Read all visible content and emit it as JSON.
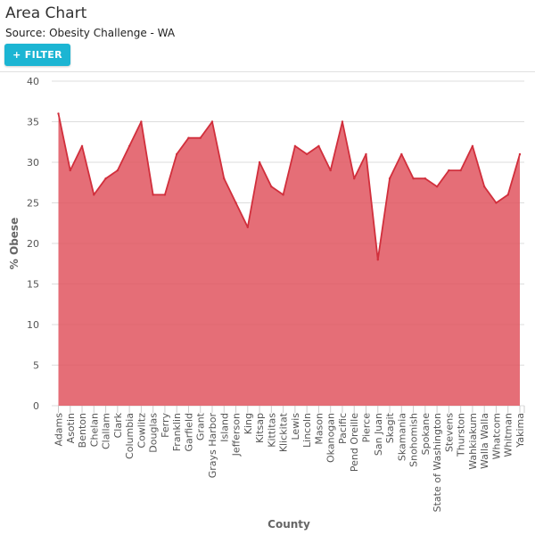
{
  "header": {
    "title": "Area Chart",
    "source": "Source: Obesity Challenge - WA"
  },
  "toolbar": {
    "filter_label": "+ FILTER"
  },
  "colors": {
    "area_fill": "#e0555f",
    "area_line": "#d12f3c",
    "button": "#1cb5d3",
    "grid": "#dddddd"
  },
  "chart_data": {
    "type": "area",
    "xlabel": "County",
    "ylabel": "% Obese",
    "ylim": [
      0,
      40
    ],
    "yticks": [
      0,
      5,
      10,
      15,
      20,
      25,
      30,
      35,
      40
    ],
    "grid": true,
    "categories": [
      "Adams",
      "Asotin",
      "Benton",
      "Chelan",
      "Clallam",
      "Clark",
      "Columbia",
      "Cowlitz",
      "Douglas",
      "Ferry",
      "Franklin",
      "Garfield",
      "Grant",
      "Grays Harbor",
      "Island",
      "Jefferson",
      "King",
      "Kitsap",
      "Kittitas",
      "Klickitat",
      "Lewis",
      "Lincoln",
      "Mason",
      "Okanogan",
      "Pacific",
      "Pend Oreille",
      "Pierce",
      "San Juan",
      "Skagit",
      "Skamania",
      "Snohomish",
      "Spokane",
      "State of Washington",
      "Stevens",
      "Thurston",
      "Wahkiakum",
      "Walla Walla",
      "Whatcom",
      "Whitman",
      "Yakima"
    ],
    "series": [
      {
        "values": [
          36,
          29,
          32,
          26,
          28,
          29,
          32,
          35,
          26,
          26,
          31,
          33,
          33,
          35,
          28,
          25,
          22,
          30,
          27,
          26,
          32,
          31,
          32,
          29,
          35,
          28,
          31,
          18,
          28,
          31,
          28,
          28,
          27,
          29,
          29,
          32,
          27,
          25,
          26,
          31
        ]
      }
    ]
  }
}
